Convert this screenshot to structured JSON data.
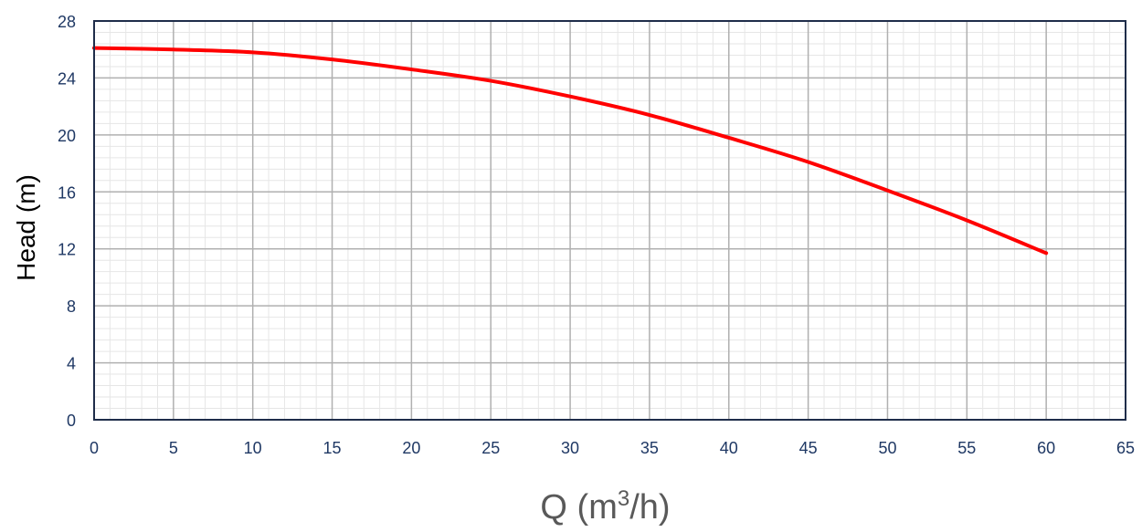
{
  "chart_data": {
    "type": "line",
    "xlabel_main": "Q (m",
    "xlabel_sup": "3",
    "xlabel_end": "/h)",
    "ylabel": "Head (m)",
    "xlim": [
      0,
      65
    ],
    "ylim": [
      0,
      28
    ],
    "x_ticks": [
      0,
      5,
      10,
      15,
      20,
      25,
      30,
      35,
      40,
      45,
      50,
      55,
      60,
      65
    ],
    "y_ticks": [
      0,
      4,
      8,
      12,
      16,
      20,
      24,
      28
    ],
    "x_minor_step": 1,
    "y_minor_step": 0.8,
    "grid": true,
    "series": [
      {
        "color": "#ff0000",
        "x": [
          0,
          5,
          10,
          15,
          20,
          25,
          30,
          35,
          40,
          45,
          50,
          55,
          60
        ],
        "y": [
          26.1,
          26.0,
          25.8,
          25.3,
          24.6,
          23.8,
          22.7,
          21.4,
          19.8,
          18.1,
          16.1,
          14.0,
          11.7
        ]
      }
    ],
    "colors": {
      "axis": "#1f2d4a",
      "tick_text": "#1f3864",
      "major_grid": "#b0b0b0",
      "minor_grid": "#e6e6e6",
      "xlabel": "#595959",
      "ylabel": "#000000"
    }
  }
}
